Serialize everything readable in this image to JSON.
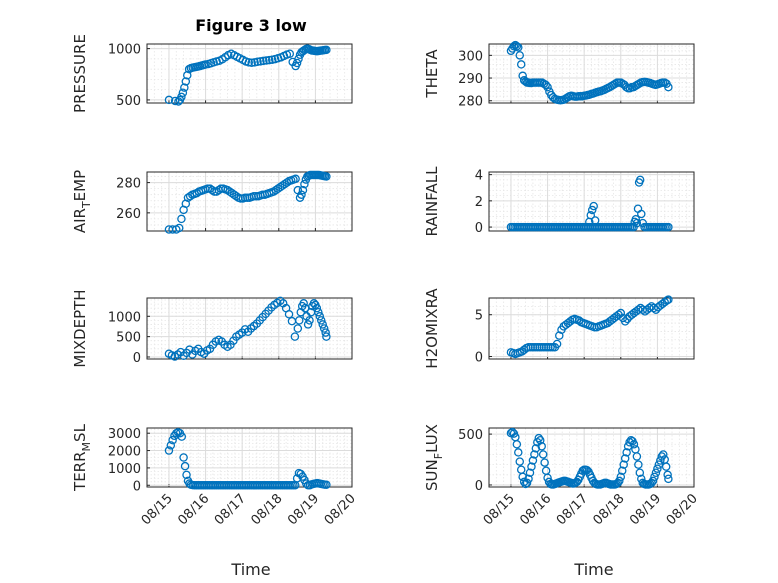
{
  "figure": {
    "title": "Figure 3 low"
  },
  "colors": {
    "series": "#0072BD"
  },
  "chart_data": [
    {
      "type": "scatter",
      "ylabel": "PRESSURE",
      "ylabel_sub": "",
      "yticks": [
        500,
        1000
      ],
      "ylim": [
        470,
        1045
      ],
      "x_day": [
        0.0,
        0.17,
        0.26,
        0.3,
        0.34,
        0.38,
        0.42,
        0.46,
        0.5,
        0.55,
        0.6,
        0.65,
        0.7,
        0.75,
        0.8,
        0.85,
        0.9,
        0.95,
        1.0,
        1.08,
        1.15,
        1.22,
        1.3,
        1.38,
        1.46,
        1.54,
        1.62,
        1.7,
        1.78,
        1.86,
        1.94,
        2.02,
        2.1,
        2.18,
        2.26,
        2.34,
        2.42,
        2.5,
        2.58,
        2.66,
        2.74,
        2.82,
        2.9,
        2.98,
        3.06,
        3.14,
        3.22,
        3.3,
        3.38,
        3.46,
        3.5,
        3.54,
        3.58,
        3.62,
        3.66,
        3.7,
        3.74,
        3.78,
        3.82,
        3.86,
        3.9,
        3.94,
        3.98,
        4.02,
        4.06,
        4.1,
        4.14,
        4.18,
        4.22,
        4.26,
        4.3
      ],
      "y": [
        500,
        490,
        485,
        500,
        530,
        570,
        620,
        680,
        740,
        800,
        810,
        815,
        818,
        822,
        826,
        830,
        835,
        840,
        845,
        850,
        858,
        866,
        874,
        882,
        896,
        916,
        936,
        950,
        935,
        920,
        905,
        890,
        875,
        866,
        862,
        866,
        872,
        876,
        880,
        884,
        888,
        892,
        898,
        906,
        915,
        928,
        942,
        950,
        870,
        830,
        860,
        900,
        940,
        965,
        975,
        985,
        995,
        1000,
        995,
        988,
        982,
        980,
        978,
        976,
        975,
        978,
        980,
        982,
        984,
        986,
        988
      ]
    },
    {
      "type": "scatter",
      "ylabel": "THETA",
      "ylabel_sub": "",
      "yticks": [
        280,
        290,
        300
      ],
      "ylim": [
        279,
        305
      ],
      "x_day": [
        0.0,
        0.04,
        0.08,
        0.12,
        0.16,
        0.2,
        0.24,
        0.28,
        0.32,
        0.36,
        0.4,
        0.44,
        0.48,
        0.52,
        0.56,
        0.6,
        0.65,
        0.7,
        0.75,
        0.8,
        0.85,
        0.9,
        0.95,
        1.0,
        1.05,
        1.1,
        1.15,
        1.2,
        1.25,
        1.3,
        1.35,
        1.4,
        1.45,
        1.5,
        1.55,
        1.6,
        1.65,
        1.7,
        1.75,
        1.8,
        1.85,
        1.9,
        1.95,
        2.0,
        2.05,
        2.1,
        2.15,
        2.2,
        2.25,
        2.3,
        2.35,
        2.4,
        2.45,
        2.5,
        2.55,
        2.6,
        2.65,
        2.7,
        2.75,
        2.8,
        2.85,
        2.9,
        2.95,
        3.0,
        3.05,
        3.1,
        3.15,
        3.2,
        3.25,
        3.3,
        3.35,
        3.4,
        3.45,
        3.5,
        3.55,
        3.6,
        3.65,
        3.7,
        3.75,
        3.8,
        3.85,
        3.9,
        3.95,
        4.0,
        4.05,
        4.1,
        4.15,
        4.2,
        4.25,
        4.3
      ],
      "y": [
        302,
        303,
        304,
        304.5,
        304,
        303.5,
        300,
        296,
        291,
        289,
        288.5,
        288,
        288,
        287.8,
        287.8,
        288,
        288,
        288,
        288,
        288,
        288,
        287.5,
        287,
        286,
        284,
        282.5,
        281.5,
        280.8,
        280.5,
        280.3,
        280.2,
        280.3,
        280.5,
        281,
        281.5,
        282,
        282.2,
        282,
        281.8,
        281.8,
        282,
        282,
        282,
        282.2,
        282.3,
        282.5,
        282.7,
        283,
        283.2,
        283.5,
        283.8,
        284,
        284.2,
        284.5,
        284.8,
        285.2,
        285.6,
        286,
        286.5,
        287,
        287.5,
        288,
        288,
        288,
        287.5,
        287,
        286,
        285.5,
        285.5,
        286,
        286,
        286.5,
        287,
        287.5,
        288,
        288.2,
        288.3,
        288.2,
        288,
        287.8,
        287.5,
        287.2,
        287,
        287.2,
        287.5,
        287.8,
        288,
        288,
        287.5,
        286
      ]
    },
    {
      "type": "scatter",
      "ylabel": "AIR",
      "ylabel_sub": "T",
      "ylabel_rest": "EMP",
      "yticks": [
        260,
        280
      ],
      "ylim": [
        248,
        287
      ],
      "x_day": [
        0.0,
        0.1,
        0.2,
        0.28,
        0.34,
        0.4,
        0.46,
        0.52,
        0.58,
        0.64,
        0.7,
        0.76,
        0.82,
        0.88,
        0.94,
        1.0,
        1.06,
        1.12,
        1.18,
        1.24,
        1.3,
        1.36,
        1.42,
        1.48,
        1.54,
        1.6,
        1.66,
        1.72,
        1.78,
        1.84,
        1.9,
        1.96,
        2.02,
        2.08,
        2.14,
        2.2,
        2.26,
        2.32,
        2.38,
        2.44,
        2.5,
        2.56,
        2.62,
        2.68,
        2.74,
        2.8,
        2.86,
        2.92,
        2.98,
        3.04,
        3.1,
        3.16,
        3.22,
        3.28,
        3.34,
        3.4,
        3.46,
        3.52,
        3.58,
        3.62,
        3.66,
        3.7,
        3.74,
        3.78,
        3.82,
        3.86,
        3.9,
        3.94,
        3.98,
        4.02,
        4.06,
        4.1,
        4.14,
        4.18,
        4.22,
        4.26,
        4.3
      ],
      "y": [
        249,
        249,
        249,
        250,
        256,
        262,
        266,
        270,
        271,
        272,
        272.5,
        273,
        274,
        274.5,
        275,
        275.5,
        276,
        276,
        275,
        274,
        274,
        275,
        276,
        276,
        275.5,
        275,
        274,
        273,
        272,
        271,
        270,
        269.5,
        269.5,
        270,
        270,
        270,
        270.5,
        271,
        271,
        271,
        271.5,
        272,
        272,
        272.5,
        273,
        273.5,
        274,
        275,
        276,
        277,
        278,
        279,
        280,
        281,
        281.5,
        282,
        282.5,
        275,
        270,
        272,
        275,
        279,
        282,
        284,
        284.5,
        285,
        285,
        285,
        285,
        285,
        285,
        285,
        284.8,
        284.6,
        284.4,
        284.2,
        284
      ]
    },
    {
      "type": "scatter",
      "ylabel": "RAINFALL",
      "ylabel_sub": "",
      "yticks": [
        0,
        2,
        4
      ],
      "ylim": [
        -0.3,
        4.2
      ],
      "x_day": [
        0.0,
        0.05,
        0.1,
        0.15,
        0.2,
        0.25,
        0.3,
        0.35,
        0.4,
        0.45,
        0.5,
        0.55,
        0.6,
        0.65,
        0.7,
        0.75,
        0.8,
        0.85,
        0.9,
        0.95,
        1.0,
        1.05,
        1.1,
        1.15,
        1.2,
        1.25,
        1.3,
        1.35,
        1.4,
        1.45,
        1.5,
        1.55,
        1.6,
        1.65,
        1.7,
        1.75,
        1.8,
        1.85,
        1.9,
        1.95,
        2.0,
        2.05,
        2.1,
        2.15,
        2.2,
        2.25,
        2.3,
        2.35,
        2.4,
        2.45,
        2.5,
        2.55,
        2.6,
        2.65,
        2.7,
        2.75,
        2.8,
        2.85,
        2.9,
        2.95,
        3.0,
        3.05,
        3.1,
        3.15,
        3.2,
        3.25,
        3.3,
        3.35,
        3.38,
        3.41,
        3.44,
        3.47,
        3.5,
        3.53,
        3.56,
        3.6,
        3.65,
        3.7,
        3.75,
        3.8,
        3.85,
        3.9,
        3.95,
        4.0,
        4.05,
        4.1,
        4.15,
        4.2,
        4.25,
        4.3,
        2.14,
        2.18,
        2.22,
        2.26,
        2.3
      ],
      "y": [
        0,
        0,
        0,
        0,
        0,
        0,
        0,
        0,
        0,
        0,
        0,
        0,
        0,
        0,
        0,
        0,
        0,
        0,
        0,
        0,
        0,
        0,
        0,
        0,
        0,
        0,
        0,
        0,
        0,
        0,
        0,
        0,
        0,
        0,
        0,
        0,
        0,
        0,
        0,
        0,
        0,
        0,
        0,
        0,
        0,
        0,
        0,
        0,
        0,
        0,
        0,
        0,
        0,
        0,
        0,
        0,
        0,
        0,
        0,
        0,
        0,
        0,
        0,
        0,
        0,
        0,
        0,
        0,
        0.4,
        0.6,
        0.3,
        1.4,
        3.4,
        3.6,
        1.0,
        0.3,
        0,
        0,
        0,
        0,
        0,
        0,
        0,
        0,
        0,
        0,
        0,
        0,
        0,
        0,
        0.4,
        0.9,
        1.3,
        1.6,
        0.5
      ]
    },
    {
      "type": "scatter",
      "ylabel": "MIXDEPTH",
      "ylabel_sub": "",
      "yticks": [
        0,
        500,
        1000
      ],
      "ylim": [
        -50,
        1450
      ],
      "x_day": [
        0.0,
        0.08,
        0.16,
        0.24,
        0.32,
        0.4,
        0.48,
        0.56,
        0.64,
        0.72,
        0.8,
        0.88,
        0.96,
        1.04,
        1.12,
        1.2,
        1.28,
        1.36,
        1.44,
        1.52,
        1.6,
        1.68,
        1.76,
        1.84,
        1.92,
        2.0,
        2.08,
        2.16,
        2.24,
        2.32,
        2.4,
        2.48,
        2.56,
        2.64,
        2.72,
        2.8,
        2.88,
        2.96,
        3.04,
        3.12,
        3.2,
        3.28,
        3.36,
        3.44,
        3.52,
        3.56,
        3.6,
        3.64,
        3.68,
        3.72,
        3.76,
        3.8,
        3.84,
        3.88,
        3.92,
        3.96,
        4.0,
        4.04,
        4.08,
        4.12,
        4.16,
        4.2,
        4.24,
        4.28,
        4.3
      ],
      "y": [
        80,
        40,
        10,
        60,
        120,
        30,
        100,
        180,
        60,
        150,
        200,
        120,
        80,
        160,
        200,
        300,
        380,
        420,
        380,
        300,
        250,
        300,
        400,
        500,
        550,
        600,
        680,
        620,
        700,
        760,
        820,
        900,
        980,
        1060,
        1140,
        1220,
        1280,
        1330,
        1380,
        1320,
        1200,
        1050,
        880,
        500,
        700,
        900,
        1100,
        1250,
        1320,
        1200,
        1000,
        800,
        900,
        1100,
        1250,
        1320,
        1280,
        1200,
        1100,
        1000,
        900,
        800,
        700,
        600,
        500
      ]
    },
    {
      "type": "scatter",
      "ylabel": "H2OMIXRA",
      "ylabel_sub": "",
      "yticks": [
        0,
        5
      ],
      "ylim": [
        -0.3,
        7.0
      ],
      "x_day": [
        0.0,
        0.06,
        0.12,
        0.18,
        0.24,
        0.3,
        0.36,
        0.42,
        0.48,
        0.54,
        0.6,
        0.66,
        0.72,
        0.78,
        0.84,
        0.9,
        0.96,
        1.02,
        1.08,
        1.14,
        1.2,
        1.26,
        1.32,
        1.38,
        1.44,
        1.5,
        1.56,
        1.62,
        1.68,
        1.74,
        1.8,
        1.86,
        1.92,
        1.98,
        2.04,
        2.1,
        2.16,
        2.22,
        2.28,
        2.34,
        2.4,
        2.46,
        2.52,
        2.58,
        2.64,
        2.7,
        2.76,
        2.82,
        2.88,
        2.94,
        3.0,
        3.06,
        3.12,
        3.18,
        3.24,
        3.3,
        3.36,
        3.42,
        3.48,
        3.54,
        3.6,
        3.66,
        3.72,
        3.78,
        3.84,
        3.9,
        3.96,
        4.02,
        4.08,
        4.14,
        4.2,
        4.26,
        4.3
      ],
      "y": [
        0.5,
        0.4,
        0.3,
        0.4,
        0.5,
        0.6,
        0.8,
        1.0,
        1.1,
        1.1,
        1.1,
        1.1,
        1.1,
        1.1,
        1.1,
        1.1,
        1.1,
        1.1,
        1.1,
        1.1,
        1.1,
        1.5,
        2.5,
        3.2,
        3.6,
        3.8,
        4.0,
        4.2,
        4.4,
        4.5,
        4.4,
        4.3,
        4.1,
        4.0,
        3.9,
        3.8,
        3.7,
        3.6,
        3.5,
        3.5,
        3.6,
        3.7,
        3.8,
        3.9,
        4.0,
        4.2,
        4.4,
        4.6,
        4.8,
        5.0,
        5.2,
        4.6,
        4.2,
        4.5,
        4.8,
        5.0,
        5.2,
        5.4,
        5.6,
        5.8,
        5.6,
        5.4,
        5.6,
        5.8,
        6.0,
        5.8,
        5.6,
        5.9,
        6.1,
        6.3,
        6.5,
        6.7,
        6.8
      ]
    },
    {
      "type": "scatter",
      "ylabel": "TERR",
      "ylabel_sub": "M",
      "ylabel_rest": "SL",
      "yticks": [
        0,
        1000,
        2000,
        3000
      ],
      "ylim": [
        -100,
        3300
      ],
      "x_day": [
        0.0,
        0.05,
        0.1,
        0.15,
        0.2,
        0.25,
        0.3,
        0.35,
        0.4,
        0.44,
        0.48,
        0.52,
        0.56,
        0.6,
        0.65,
        0.7,
        0.75,
        0.8,
        0.85,
        0.9,
        0.95,
        1.0,
        1.05,
        1.1,
        1.15,
        1.2,
        1.25,
        1.3,
        1.35,
        1.4,
        1.45,
        1.5,
        1.55,
        1.6,
        1.65,
        1.7,
        1.75,
        1.8,
        1.85,
        1.9,
        1.95,
        2.0,
        2.05,
        2.1,
        2.15,
        2.2,
        2.25,
        2.3,
        2.35,
        2.4,
        2.45,
        2.5,
        2.55,
        2.6,
        2.65,
        2.7,
        2.75,
        2.8,
        2.85,
        2.9,
        2.95,
        3.0,
        3.05,
        3.1,
        3.15,
        3.2,
        3.25,
        3.3,
        3.35,
        3.4,
        3.45,
        3.5,
        3.55,
        3.6,
        3.65,
        3.7,
        3.75,
        3.8,
        3.85,
        3.9,
        3.95,
        4.0,
        4.05,
        4.1,
        4.15,
        4.2,
        4.25,
        4.3
      ],
      "y": [
        2000,
        2300,
        2600,
        2850,
        3000,
        3050,
        3000,
        2800,
        1600,
        1100,
        600,
        250,
        100,
        30,
        10,
        0,
        0,
        0,
        0,
        0,
        0,
        0,
        0,
        0,
        0,
        0,
        0,
        0,
        0,
        0,
        0,
        0,
        0,
        0,
        0,
        0,
        0,
        0,
        0,
        0,
        0,
        0,
        0,
        0,
        0,
        0,
        0,
        0,
        0,
        0,
        0,
        0,
        0,
        0,
        0,
        0,
        0,
        0,
        0,
        0,
        0,
        0,
        0,
        0,
        0,
        0,
        0,
        0,
        0,
        0,
        0,
        400,
        700,
        650,
        500,
        300,
        100,
        0,
        0,
        50,
        80,
        100,
        120,
        100,
        80,
        60,
        40,
        30
      ]
    },
    {
      "type": "scatter",
      "ylabel": "SUN",
      "ylabel_sub": "F",
      "ylabel_rest": "LUX",
      "yticks": [
        0,
        500
      ],
      "ylim": [
        -20,
        560
      ],
      "x_day": [
        0.0,
        0.04,
        0.08,
        0.12,
        0.16,
        0.2,
        0.24,
        0.28,
        0.32,
        0.36,
        0.4,
        0.44,
        0.48,
        0.52,
        0.56,
        0.6,
        0.64,
        0.68,
        0.72,
        0.76,
        0.8,
        0.84,
        0.88,
        0.92,
        0.96,
        1.0,
        1.04,
        1.08,
        1.12,
        1.16,
        1.2,
        1.24,
        1.28,
        1.32,
        1.36,
        1.4,
        1.44,
        1.48,
        1.52,
        1.56,
        1.6,
        1.64,
        1.68,
        1.72,
        1.76,
        1.8,
        1.84,
        1.88,
        1.92,
        1.96,
        2.0,
        2.04,
        2.08,
        2.12,
        2.16,
        2.2,
        2.24,
        2.28,
        2.32,
        2.36,
        2.4,
        2.44,
        2.48,
        2.52,
        2.56,
        2.6,
        2.64,
        2.68,
        2.72,
        2.76,
        2.8,
        2.84,
        2.88,
        2.92,
        2.96,
        3.0,
        3.04,
        3.08,
        3.12,
        3.16,
        3.2,
        3.24,
        3.28,
        3.32,
        3.36,
        3.4,
        3.44,
        3.48,
        3.52,
        3.56,
        3.6,
        3.64,
        3.68,
        3.72,
        3.76,
        3.8,
        3.84,
        3.88,
        3.92,
        3.96,
        4.0,
        4.04,
        4.08,
        4.12,
        4.16,
        4.2,
        4.24,
        4.28,
        4.3
      ],
      "y": [
        510,
        520,
        505,
        470,
        400,
        320,
        230,
        150,
        80,
        30,
        10,
        20,
        60,
        120,
        180,
        240,
        300,
        360,
        420,
        460,
        440,
        380,
        300,
        220,
        140,
        70,
        30,
        10,
        5,
        5,
        10,
        15,
        20,
        25,
        30,
        35,
        40,
        40,
        35,
        30,
        25,
        20,
        15,
        15,
        20,
        30,
        50,
        80,
        110,
        140,
        150,
        150,
        145,
        130,
        100,
        70,
        40,
        20,
        10,
        5,
        5,
        5,
        10,
        15,
        20,
        20,
        15,
        10,
        5,
        5,
        5,
        5,
        10,
        20,
        40,
        80,
        140,
        200,
        260,
        320,
        380,
        420,
        440,
        430,
        400,
        350,
        280,
        200,
        120,
        60,
        20,
        10,
        5,
        5,
        5,
        10,
        20,
        40,
        80,
        120,
        160,
        200,
        240,
        280,
        300,
        250,
        180,
        100,
        60
      ]
    }
  ],
  "x_axis": {
    "tick_labels": [
      "08/15",
      "08/16",
      "08/17",
      "08/18",
      "08/19",
      "08/20"
    ],
    "xlabel": "Time"
  }
}
